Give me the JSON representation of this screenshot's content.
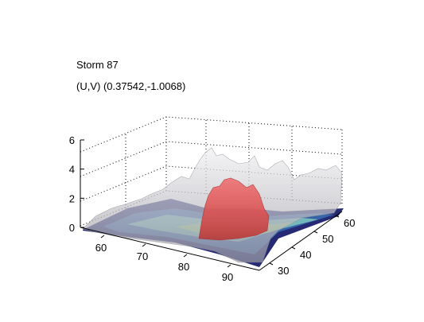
{
  "chart_data": {
    "type": "surface",
    "title": "Storm 87",
    "subtitle": "(U,V) (0.37542,-1.0068)",
    "xlabel": "",
    "ylabel": "",
    "zlabel": "",
    "x_ticks": [
      "60",
      "70",
      "80",
      "90"
    ],
    "y_ticks": [
      "30",
      "40",
      "50",
      "60"
    ],
    "z_ticks": [
      "0",
      "2",
      "4",
      "6"
    ],
    "zlim": [
      0,
      6
    ],
    "grid": true,
    "surfaces": [
      {
        "role": "translucent-terrain",
        "color": "#c8c8cc"
      },
      {
        "role": "low-level-contours",
        "colors": [
          "#1a1f6e",
          "#3b6fb3",
          "#7fc7c0",
          "#a8d88a"
        ]
      },
      {
        "role": "core-isosurface",
        "color": "#e05858"
      }
    ]
  }
}
